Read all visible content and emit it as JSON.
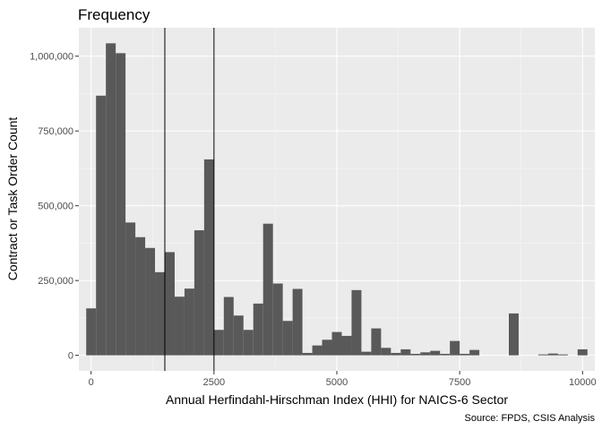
{
  "chart_data": {
    "type": "bar",
    "subtype": "histogram",
    "title": "Frequency",
    "xlabel": "Annual Herfindahl-Hirschman Index (HHI) for NAICS-6 Sector",
    "ylabel": "Contract or Task Order Count",
    "caption": "Source: FPDS, CSIS Analysis",
    "xlim": [
      -250,
      10250
    ],
    "ylim": [
      -52000,
      1095000
    ],
    "bin_width": 200,
    "bin_centers": [
      0,
      200,
      400,
      600,
      800,
      1000,
      1200,
      1400,
      1600,
      1800,
      2000,
      2200,
      2400,
      2600,
      2800,
      3000,
      3200,
      3400,
      3600,
      3800,
      4000,
      4200,
      4400,
      4600,
      4800,
      5000,
      5200,
      5400,
      5600,
      5800,
      6000,
      6200,
      6400,
      6600,
      6800,
      7000,
      7200,
      7400,
      7600,
      7800,
      8000,
      8200,
      8400,
      8600,
      8800,
      9000,
      9200,
      9400,
      9600,
      9800,
      10000
    ],
    "values": [
      157000,
      868000,
      1043000,
      1010000,
      444000,
      395000,
      359000,
      278000,
      345000,
      196000,
      223000,
      418000,
      655000,
      85000,
      195000,
      133000,
      85000,
      173000,
      440000,
      240000,
      115000,
      222000,
      8000,
      33000,
      52000,
      78000,
      65000,
      218000,
      12000,
      90000,
      25000,
      8000,
      20000,
      5000,
      10000,
      15000,
      5000,
      48000,
      5000,
      18000,
      0,
      0,
      0,
      140000,
      0,
      0,
      3000,
      6000,
      3000,
      0,
      20000
    ],
    "reference_lines_x": [
      1500,
      2500
    ],
    "x_ticks": [
      0,
      2500,
      5000,
      7500,
      10000
    ],
    "x_tick_labels": [
      "0",
      "2500",
      "5000",
      "7500",
      "10000"
    ],
    "y_ticks": [
      0,
      250000,
      500000,
      750000,
      1000000
    ],
    "y_tick_labels": [
      "0",
      "250,000",
      "500,000",
      "750,000",
      "1,000,000"
    ],
    "grid": true,
    "colors": {
      "panel": "#ebebeb",
      "grid_major": "#ffffff",
      "bar": "#595959",
      "reference_line": "#000000"
    }
  }
}
